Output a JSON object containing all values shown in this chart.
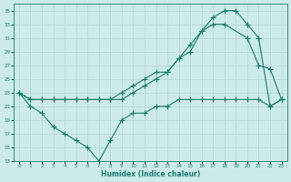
{
  "xlabel": "Humidex (Indice chaleur)",
  "bg_color": "#cceaea",
  "grid_color": "#b8d8d8",
  "line_color": "#1a7a6e",
  "xlim": [
    -0.5,
    23.5
  ],
  "ylim": [
    13,
    36
  ],
  "xticks": [
    0,
    1,
    2,
    3,
    4,
    5,
    6,
    7,
    8,
    9,
    10,
    11,
    12,
    13,
    14,
    15,
    16,
    17,
    18,
    19,
    20,
    21,
    22,
    23
  ],
  "yticks": [
    13,
    15,
    17,
    19,
    21,
    23,
    25,
    27,
    29,
    31,
    33,
    35
  ],
  "line1_x": [
    0,
    1,
    2,
    3,
    4,
    5,
    6,
    7,
    8,
    9,
    10,
    11,
    12,
    13,
    14,
    15,
    16,
    17,
    18,
    19,
    20,
    21,
    22,
    23
  ],
  "line1_y": [
    23,
    22,
    22,
    22,
    22,
    22,
    22,
    22,
    22,
    22,
    23,
    24,
    25,
    26,
    28,
    29,
    32,
    34,
    35,
    35,
    33,
    31,
    21,
    22
  ],
  "line2_x": [
    0,
    1,
    2,
    3,
    4,
    5,
    6,
    7,
    8,
    9,
    10,
    11,
    12,
    13,
    14,
    15,
    16,
    17,
    18,
    20,
    21,
    22,
    23
  ],
  "line2_y": [
    23,
    22,
    22,
    22,
    22,
    22,
    22,
    22,
    22,
    23,
    24,
    25,
    26,
    26,
    28,
    30,
    32,
    33,
    33,
    31,
    27,
    26.5,
    22
  ],
  "line3_x": [
    0,
    1,
    2,
    3,
    4,
    5,
    6,
    7,
    8,
    9,
    10,
    11,
    12,
    13,
    14,
    15,
    16,
    17,
    18,
    19,
    20,
    21,
    22,
    23
  ],
  "line3_y": [
    23,
    21,
    20,
    18,
    17,
    16,
    15,
    13,
    16,
    19,
    20,
    20,
    21,
    21,
    22,
    22,
    22,
    22,
    22,
    22,
    22,
    22,
    21,
    22
  ]
}
